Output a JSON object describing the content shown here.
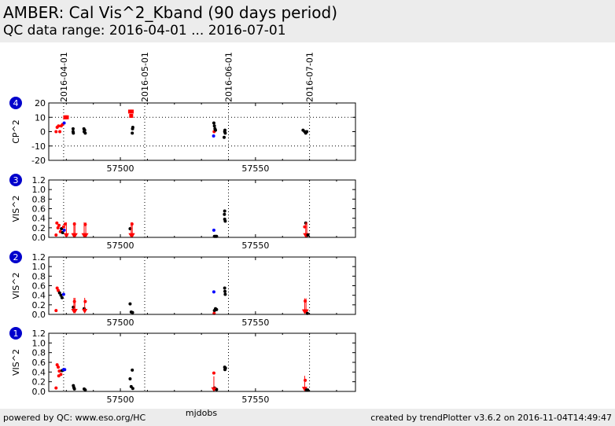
{
  "header": {
    "title": "AMBER: Cal Vis^2_Kband (90 days period)",
    "subtitle": "QC data range: 2016-04-01 ... 2016-07-01"
  },
  "footer": {
    "left": "powered by QC: www.eso.org/HC",
    "right": "created by trendPlotter v3.6.2 on 2016-11-04T14:49:47"
  },
  "colors": {
    "black": "#000000",
    "red": "#ff0000",
    "blue": "#0000ff",
    "badge": "#0000cc"
  },
  "chart_data": {
    "type": "scatter",
    "xlabel": "mjdobs",
    "xlim": [
      57473.5,
      57587
    ],
    "x_ticks": [
      57500,
      57550
    ],
    "date_lines": [
      {
        "x": 57479,
        "label": "2016-04-01"
      },
      {
        "x": 57509,
        "label": "2016-05-01"
      },
      {
        "x": 57540,
        "label": "2016-06-01"
      },
      {
        "x": 57570,
        "label": "2016-07-01"
      }
    ],
    "panels": [
      {
        "id": "4",
        "ylabel": "CP^2",
        "ylim": [
          -20,
          20
        ],
        "yticks": [
          "20",
          "10",
          "0",
          "-10",
          "-20"
        ],
        "ytick_values": [
          20,
          10,
          0,
          -10,
          -20
        ],
        "hlines": [
          10,
          -10
        ],
        "points": [
          {
            "x": 57476.2,
            "y": 0,
            "c": "red"
          },
          {
            "x": 57476.6,
            "y": 3,
            "c": "red"
          },
          {
            "x": 57477.1,
            "y": 4,
            "c": "red"
          },
          {
            "x": 57477.6,
            "y": 0,
            "c": "red"
          },
          {
            "x": 57478.1,
            "y": 4,
            "c": "red"
          },
          {
            "x": 57478.6,
            "y": 5,
            "c": "red"
          },
          {
            "x": 57479.2,
            "y": 6,
            "c": "blue"
          },
          {
            "x": 57479.6,
            "y": 10,
            "c": "red",
            "m": "s"
          },
          {
            "x": 57480.2,
            "y": 10,
            "c": "red",
            "m": "s"
          },
          {
            "x": 57482.5,
            "y": 2,
            "c": "black"
          },
          {
            "x": 57482.5,
            "y": 0,
            "c": "black"
          },
          {
            "x": 57482.6,
            "y": -1,
            "c": "black"
          },
          {
            "x": 57486.5,
            "y": 2,
            "c": "black"
          },
          {
            "x": 57486.6,
            "y": 0,
            "c": "black"
          },
          {
            "x": 57486.8,
            "y": 1,
            "c": "black"
          },
          {
            "x": 57487.0,
            "y": -1,
            "c": "black"
          },
          {
            "x": 57503.6,
            "y": 14,
            "c": "red",
            "m": "s"
          },
          {
            "x": 57504.0,
            "y": 11,
            "c": "red",
            "m": "s"
          },
          {
            "x": 57504.2,
            "y": 14,
            "c": "red",
            "m": "s"
          },
          {
            "x": 57504.5,
            "y": 2,
            "c": "black"
          },
          {
            "x": 57504.6,
            "y": 3,
            "c": "black"
          },
          {
            "x": 57504.4,
            "y": -1,
            "c": "black"
          },
          {
            "x": 57534.6,
            "y": 6,
            "c": "black"
          },
          {
            "x": 57534.8,
            "y": 4,
            "c": "black"
          },
          {
            "x": 57535.0,
            "y": 2,
            "c": "black"
          },
          {
            "x": 57534.7,
            "y": 0,
            "c": "red"
          },
          {
            "x": 57535.2,
            "y": 1,
            "c": "black"
          },
          {
            "x": 57534.5,
            "y": -3,
            "c": "blue"
          },
          {
            "x": 57538.6,
            "y": 0,
            "c": "black"
          },
          {
            "x": 57538.8,
            "y": -1,
            "c": "black"
          },
          {
            "x": 57538.4,
            "y": -4,
            "c": "black"
          },
          {
            "x": 57538.7,
            "y": 1,
            "c": "black"
          },
          {
            "x": 57567.6,
            "y": 1,
            "c": "black"
          },
          {
            "x": 57568.2,
            "y": 0,
            "c": "black"
          },
          {
            "x": 57568.6,
            "y": -1,
            "c": "black"
          },
          {
            "x": 57569.0,
            "y": 0,
            "c": "black"
          }
        ]
      },
      {
        "id": "3",
        "ylabel": "VIS^2",
        "ylim": [
          0,
          1.2
        ],
        "yticks": [
          "1.2",
          "1.0",
          "0.8",
          "0.6",
          "0.4",
          "0.2",
          "0.0"
        ],
        "ytick_values": [
          1.2,
          1.0,
          0.8,
          0.6,
          0.4,
          0.2,
          0.0
        ],
        "points": [
          {
            "x": 57476.2,
            "y": 0.05,
            "c": "red"
          },
          {
            "x": 57476.5,
            "y": 0.3,
            "c": "red"
          },
          {
            "x": 57476.9,
            "y": 0.2,
            "c": "red"
          },
          {
            "x": 57477.3,
            "y": 0.25,
            "c": "red"
          },
          {
            "x": 57477.8,
            "y": 0.12,
            "c": "red"
          },
          {
            "x": 57478.2,
            "y": 0.18,
            "c": "black"
          },
          {
            "x": 57478.6,
            "y": 0.1,
            "c": "black"
          },
          {
            "x": 57479.0,
            "y": 0.22,
            "c": "red"
          },
          {
            "x": 57479.2,
            "y": 0.15,
            "c": "blue"
          },
          {
            "x": 57479.6,
            "y": 0.28,
            "c": "red"
          },
          {
            "x": 57480.1,
            "y": 0.05,
            "c": "red"
          },
          {
            "x": 57480.0,
            "y": 0.02,
            "c": "red",
            "m": "v"
          },
          {
            "x": 57483.0,
            "y": 0.28,
            "c": "red"
          },
          {
            "x": 57482.8,
            "y": 0.02,
            "c": "red",
            "m": "v"
          },
          {
            "x": 57483.2,
            "y": 0.02,
            "c": "red",
            "m": "v"
          },
          {
            "x": 57487.0,
            "y": 0.27,
            "c": "red"
          },
          {
            "x": 57486.6,
            "y": 0.02,
            "c": "red",
            "m": "v"
          },
          {
            "x": 57487.2,
            "y": 0.02,
            "c": "red",
            "m": "v"
          },
          {
            "x": 57503.6,
            "y": 0.18,
            "c": "black"
          },
          {
            "x": 57504.3,
            "y": 0.28,
            "c": "red"
          },
          {
            "x": 57504.0,
            "y": 0.02,
            "c": "red",
            "m": "v"
          },
          {
            "x": 57504.4,
            "y": 0.02,
            "c": "red",
            "m": "v"
          },
          {
            "x": 57534.6,
            "y": 0.15,
            "c": "blue"
          },
          {
            "x": 57534.8,
            "y": 0.02,
            "c": "black"
          },
          {
            "x": 57535.2,
            "y": 0.02,
            "c": "black"
          },
          {
            "x": 57535.6,
            "y": 0.02,
            "c": "black"
          },
          {
            "x": 57538.6,
            "y": 0.55,
            "c": "black"
          },
          {
            "x": 57538.5,
            "y": 0.48,
            "c": "black"
          },
          {
            "x": 57538.6,
            "y": 0.38,
            "c": "black"
          },
          {
            "x": 57538.8,
            "y": 0.34,
            "c": "black"
          },
          {
            "x": 57568.6,
            "y": 0.3,
            "c": "black"
          },
          {
            "x": 57568.2,
            "y": 0.22,
            "c": "red"
          },
          {
            "x": 57568.6,
            "y": 0.02,
            "c": "red",
            "m": "v"
          },
          {
            "x": 57569.0,
            "y": 0.02,
            "c": "red",
            "m": "v"
          },
          {
            "x": 57569.4,
            "y": 0.05,
            "c": "black"
          }
        ]
      },
      {
        "id": "2",
        "ylabel": "VIS^2",
        "ylim": [
          0,
          1.2
        ],
        "yticks": [
          "1.2",
          "1.0",
          "0.8",
          "0.6",
          "0.4",
          "0.2",
          "0.0"
        ],
        "ytick_values": [
          1.2,
          1.0,
          0.8,
          0.6,
          0.4,
          0.2,
          0.0
        ],
        "points": [
          {
            "x": 57476.2,
            "y": 0.08,
            "c": "red"
          },
          {
            "x": 57476.6,
            "y": 0.55,
            "c": "red"
          },
          {
            "x": 57477.0,
            "y": 0.5,
            "c": "red"
          },
          {
            "x": 57477.5,
            "y": 0.45,
            "c": "black"
          },
          {
            "x": 57478.0,
            "y": 0.4,
            "c": "black"
          },
          {
            "x": 57478.4,
            "y": 0.35,
            "c": "black"
          },
          {
            "x": 57479.0,
            "y": 0.42,
            "c": "blue"
          },
          {
            "x": 57482.6,
            "y": 0.15,
            "c": "black"
          },
          {
            "x": 57483.0,
            "y": 0.27,
            "c": "red"
          },
          {
            "x": 57482.8,
            "y": 0.05,
            "c": "red",
            "m": "v"
          },
          {
            "x": 57483.2,
            "y": 0.05,
            "c": "red",
            "m": "v"
          },
          {
            "x": 57486.6,
            "y": 0.12,
            "c": "black"
          },
          {
            "x": 57487.0,
            "y": 0.27,
            "c": "red"
          },
          {
            "x": 57486.8,
            "y": 0.05,
            "c": "red",
            "m": "v"
          },
          {
            "x": 57503.6,
            "y": 0.22,
            "c": "black"
          },
          {
            "x": 57504.0,
            "y": 0.05,
            "c": "black"
          },
          {
            "x": 57504.5,
            "y": 0.04,
            "c": "black"
          },
          {
            "x": 57534.6,
            "y": 0.47,
            "c": "blue"
          },
          {
            "x": 57534.8,
            "y": 0.08,
            "c": "black"
          },
          {
            "x": 57535.2,
            "y": 0.12,
            "c": "black"
          },
          {
            "x": 57535.6,
            "y": 0.1,
            "c": "black"
          },
          {
            "x": 57534.7,
            "y": 0.02,
            "c": "red"
          },
          {
            "x": 57538.6,
            "y": 0.55,
            "c": "black"
          },
          {
            "x": 57538.7,
            "y": 0.48,
            "c": "black"
          },
          {
            "x": 57538.8,
            "y": 0.42,
            "c": "black"
          },
          {
            "x": 57568.4,
            "y": 0.28,
            "c": "red"
          },
          {
            "x": 57568.2,
            "y": 0.04,
            "c": "red",
            "m": "v"
          },
          {
            "x": 57568.7,
            "y": 0.04,
            "c": "red",
            "m": "v"
          },
          {
            "x": 57569.2,
            "y": 0.02,
            "c": "black"
          }
        ]
      },
      {
        "id": "1",
        "ylabel": "VIS^2",
        "ylim": [
          0,
          1.2
        ],
        "yticks": [
          "1.2",
          "1.0",
          "0.8",
          "0.6",
          "0.4",
          "0.2",
          "0.0"
        ],
        "ytick_values": [
          1.2,
          1.0,
          0.8,
          0.6,
          0.4,
          0.2,
          0.0
        ],
        "points": [
          {
            "x": 57476.2,
            "y": 0.07,
            "c": "red"
          },
          {
            "x": 57476.6,
            "y": 0.55,
            "c": "red"
          },
          {
            "x": 57477.0,
            "y": 0.5,
            "c": "red"
          },
          {
            "x": 57477.4,
            "y": 0.42,
            "c": "red"
          },
          {
            "x": 57477.2,
            "y": 0.32,
            "c": "red"
          },
          {
            "x": 57478.0,
            "y": 0.35,
            "c": "red"
          },
          {
            "x": 57478.4,
            "y": 0.43,
            "c": "black"
          },
          {
            "x": 57479.0,
            "y": 0.45,
            "c": "blue"
          },
          {
            "x": 57479.4,
            "y": 0.45,
            "c": "blue"
          },
          {
            "x": 57482.6,
            "y": 0.12,
            "c": "black"
          },
          {
            "x": 57482.8,
            "y": 0.08,
            "c": "black"
          },
          {
            "x": 57483.0,
            "y": 0.05,
            "c": "black"
          },
          {
            "x": 57486.6,
            "y": 0.05,
            "c": "black"
          },
          {
            "x": 57487.0,
            "y": 0.03,
            "c": "black"
          },
          {
            "x": 57503.6,
            "y": 0.26,
            "c": "black"
          },
          {
            "x": 57504.0,
            "y": 0.1,
            "c": "black"
          },
          {
            "x": 57504.4,
            "y": 0.44,
            "c": "black"
          },
          {
            "x": 57504.6,
            "y": 0.06,
            "c": "black"
          },
          {
            "x": 57534.6,
            "y": 0.38,
            "c": "red"
          },
          {
            "x": 57534.8,
            "y": 0.07,
            "c": "black"
          },
          {
            "x": 57535.2,
            "y": 0.05,
            "c": "black"
          },
          {
            "x": 57535.6,
            "y": 0.04,
            "c": "black"
          },
          {
            "x": 57534.6,
            "y": 0.02,
            "c": "red",
            "m": "v"
          },
          {
            "x": 57538.6,
            "y": 0.5,
            "c": "black"
          },
          {
            "x": 57538.7,
            "y": 0.45,
            "c": "black"
          },
          {
            "x": 57538.9,
            "y": 0.48,
            "c": "black"
          },
          {
            "x": 57568.4,
            "y": 0.23,
            "c": "red"
          },
          {
            "x": 57568.2,
            "y": 0.03,
            "c": "red",
            "m": "v"
          },
          {
            "x": 57568.9,
            "y": 0.03,
            "c": "black"
          },
          {
            "x": 57569.3,
            "y": 0.03,
            "c": "black"
          }
        ]
      }
    ]
  }
}
